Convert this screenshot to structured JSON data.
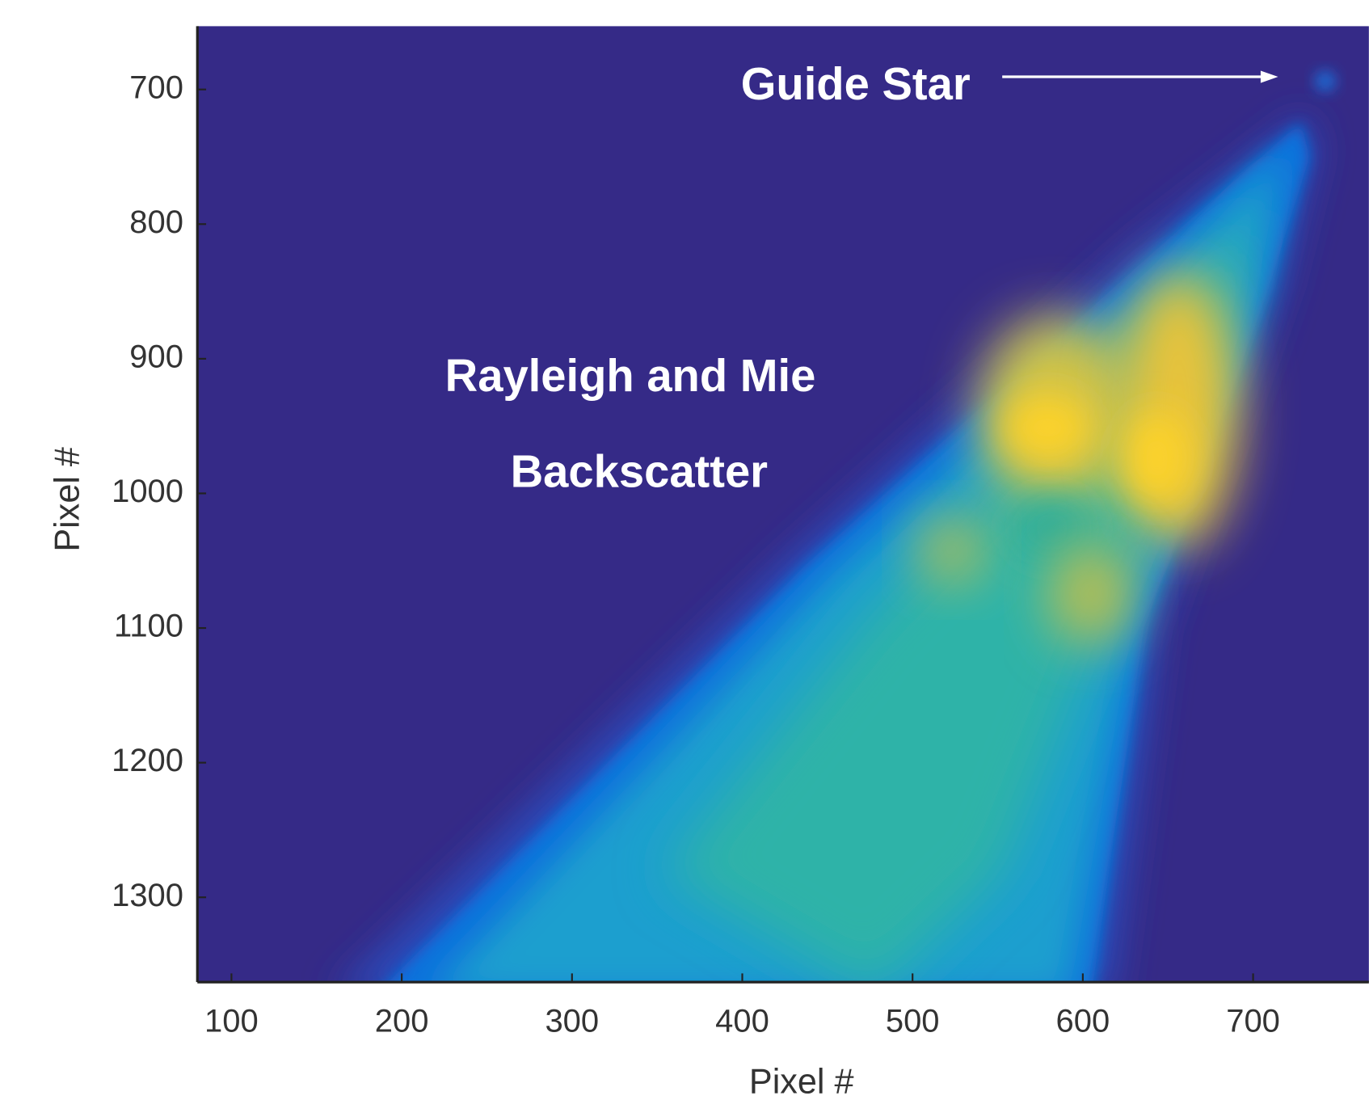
{
  "chart_data": {
    "type": "heatmap",
    "xlabel": "Pixel #",
    "ylabel": "Pixel #",
    "xlim": [
      80,
      768
    ],
    "ylim": [
      653,
      1363
    ],
    "y_reversed": true,
    "xticks": [
      100,
      200,
      300,
      400,
      500,
      600,
      700
    ],
    "yticks": [
      700,
      800,
      900,
      1000,
      1100,
      1200,
      1300
    ],
    "annotations": [
      "Guide Star",
      "Rayleigh and Mie",
      "Backscatter"
    ]
  }
}
